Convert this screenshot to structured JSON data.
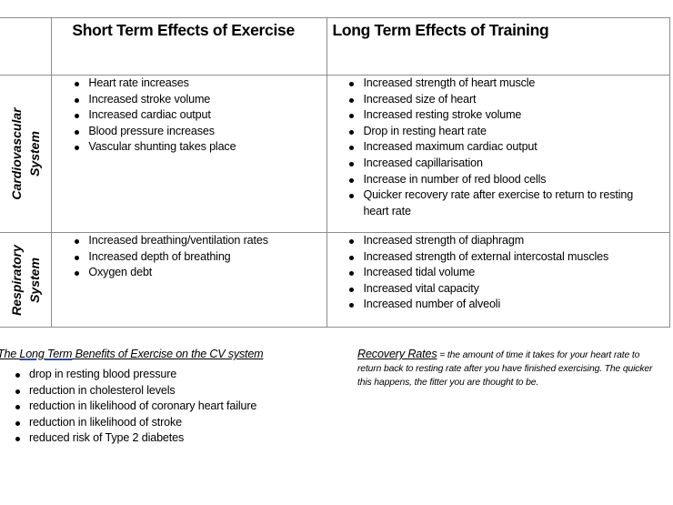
{
  "table": {
    "headers": {
      "row_label": "",
      "short_term": "Short Term Effects of Exercise",
      "long_term": "Long Term Effects of Training"
    },
    "rows": [
      {
        "label_line1": "Cardiovascular",
        "label_line2": "System",
        "short_term": [
          "Heart rate increases",
          "Increased stroke volume",
          "Increased cardiac output",
          "Blood pressure increases",
          "Vascular shunting takes place"
        ],
        "long_term": [
          "Increased strength of heart muscle",
          "Increased size of heart",
          "Increased resting stroke volume",
          "Drop in resting heart rate",
          "Increased maximum cardiac output",
          "Increased capillarisation",
          "Increase in number of red blood cells",
          "Quicker recovery rate after exercise to return to resting heart rate"
        ]
      },
      {
        "label_line1": "Respiratory",
        "label_line2": "System",
        "short_term": [
          "Increased breathing/ventilation rates",
          "Increased depth of breathing",
          "Oxygen debt"
        ],
        "long_term": [
          "Increased strength of diaphragm",
          "Increased strength of external intercostal muscles",
          "Increased tidal volume",
          "Increased vital capacity",
          "Increased number of alveoli"
        ]
      }
    ]
  },
  "benefits": {
    "title_prefix": "The ",
    "title_highlight": "Long Term",
    "title_suffix": " Benefits of Exercise on the CV system",
    "items": [
      "drop in resting blood pressure",
      "reduction in cholesterol levels",
      "reduction in likelihood of coronary heart failure",
      "reduction in likelihood of stroke",
      "reduced risk of Type 2 diabetes"
    ]
  },
  "recovery": {
    "term": "Recovery Rates",
    "line1": " = the amount of time it takes for your heart rate to",
    "line2": "return back to resting rate after you have finished exercising. The quicker",
    "line3": "this happens, the fitter you are thought to be."
  },
  "colors": {
    "border": "#8c8c8c",
    "spellcheck_underline": "#2b4bb0"
  }
}
